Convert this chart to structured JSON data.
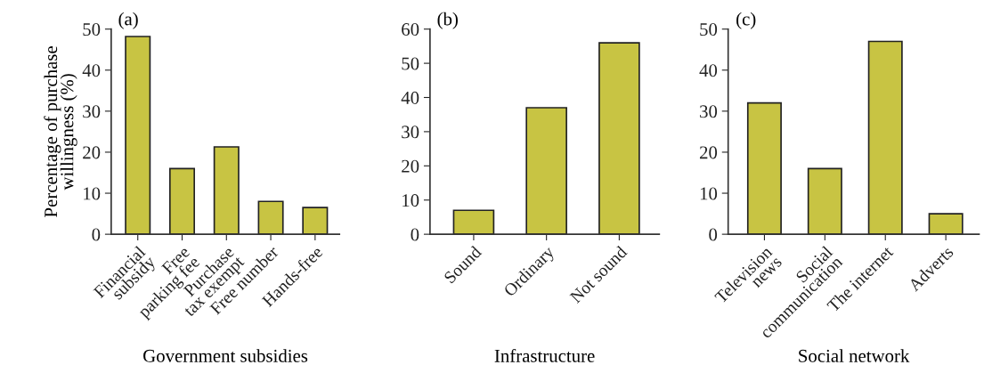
{
  "chart_data": [
    {
      "type": "bar",
      "xlabel": "Government subsidies",
      "ylabel": "Percentage of purchase\nwillingness (%)",
      "annotations": [
        "(a)"
      ],
      "categories": [
        "Financial\nsubsidy",
        "Free\nparking fee",
        "Purchase\ntax exempt",
        "Free number",
        "Hands-free"
      ],
      "values": [
        48.2,
        16,
        21.3,
        8,
        6.5
      ],
      "color": "#c8c443",
      "ylim": [
        0,
        50
      ],
      "yticks": [
        0,
        10,
        20,
        30,
        40,
        50
      ],
      "grid": false,
      "legend": false
    },
    {
      "type": "bar",
      "xlabel": "Infrastructure",
      "annotations": [
        "(b)"
      ],
      "categories": [
        "Sound",
        "Ordinary",
        "Not sound"
      ],
      "values": [
        7,
        37,
        56
      ],
      "color": "#c8c443",
      "ylim": [
        0,
        60
      ],
      "yticks": [
        0,
        10,
        20,
        30,
        40,
        50,
        60
      ],
      "grid": false,
      "legend": false
    },
    {
      "type": "bar",
      "xlabel": "Social network",
      "annotations": [
        "(c)"
      ],
      "categories": [
        "Television\nnews",
        "Social\ncommunication",
        "The internet",
        "Adverts"
      ],
      "values": [
        32,
        16,
        47,
        5
      ],
      "color": "#c8c443",
      "ylim": [
        0,
        50
      ],
      "yticks": [
        0,
        10,
        20,
        30,
        40,
        50
      ],
      "grid": false,
      "legend": false
    }
  ]
}
